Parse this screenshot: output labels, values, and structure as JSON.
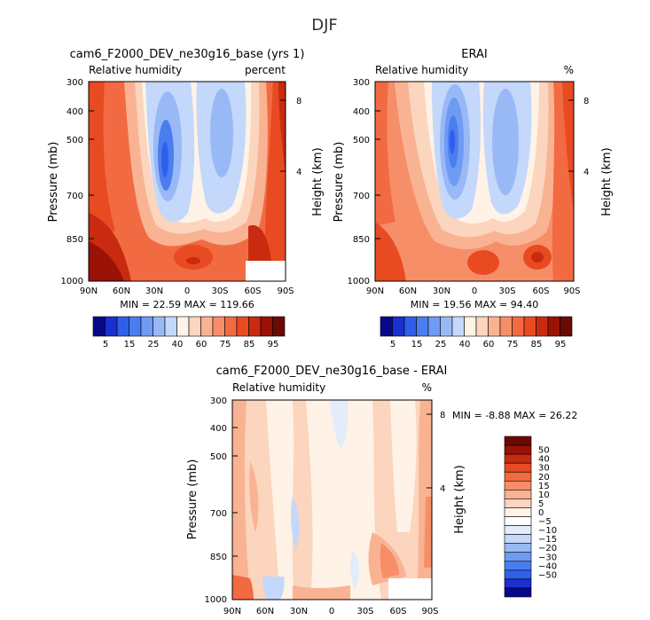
{
  "title": "DJF",
  "palette_main": [
    "#08088a",
    "#1a2fd0",
    "#2f5fea",
    "#4a7ef0",
    "#6f9bf3",
    "#99b9f6",
    "#c3d8fa",
    "#fff2e6",
    "#fbd5bd",
    "#f9b393",
    "#f68e68",
    "#f26a42",
    "#e84a22",
    "#c82b10",
    "#9a1206",
    "#6a0a04"
  ],
  "palette_diff": [
    "#08088a",
    "#1a2fd0",
    "#2f5fea",
    "#4a7ef0",
    "#6f9bf3",
    "#99b9f6",
    "#c3d8fa",
    "#e3ecfb",
    "#ffffff",
    "#fff2e6",
    "#fbd5bd",
    "#f9b393",
    "#f68e68",
    "#f26a42",
    "#e84a22",
    "#c82b10",
    "#9a1206",
    "#6a0a04"
  ],
  "panels": {
    "model": {
      "title": "cam6_F2000_DEV_ne30g16_base (yrs 1)",
      "variable": "Relative humidity",
      "units": "percent",
      "ylabel": "Pressure (mb)",
      "ylabel_right": "Height (km)",
      "min_label": "MIN =",
      "min": "22.59",
      "max_label": "MAX =",
      "max": "119.66"
    },
    "obs": {
      "title": "ERAI",
      "variable": "Relative humidity",
      "units": "%",
      "ylabel": "Pressure (mb)",
      "ylabel_right": "Height (km)",
      "min_label": "MIN =",
      "min": "19.56",
      "max_label": "MAX =",
      "max": "94.40"
    },
    "diff": {
      "title": "cam6_F2000_DEV_ne30g16_base - ERAI",
      "variable": "Relative humidity",
      "units": "%",
      "ylabel": "Pressure (mb)",
      "ylabel_right": "Height (km)",
      "min_label": "MIN =",
      "min": "-8.88",
      "max_label": "MAX =",
      "max": "26.22"
    }
  },
  "chart_data": [
    {
      "type": "heatmap",
      "panel": "model",
      "x_ticks": [
        "90N",
        "60N",
        "30N",
        "0",
        "30S",
        "60S",
        "90S"
      ],
      "y_ticks": [
        "300",
        "400",
        "500",
        "700",
        "850",
        "1000"
      ],
      "y_ticks_right": [
        "8",
        "4"
      ],
      "colorbar_levels": [
        "5",
        "15",
        "25",
        "40",
        "60",
        "75",
        "85",
        "95"
      ],
      "colorbar_position": "bottom"
    },
    {
      "type": "heatmap",
      "panel": "obs",
      "x_ticks": [
        "90N",
        "60N",
        "30N",
        "0",
        "30S",
        "60S",
        "90S"
      ],
      "y_ticks": [
        "300",
        "400",
        "500",
        "700",
        "850",
        "1000"
      ],
      "y_ticks_right": [
        "8",
        "4"
      ],
      "colorbar_levels": [
        "5",
        "15",
        "25",
        "40",
        "60",
        "75",
        "85",
        "95"
      ],
      "colorbar_position": "bottom"
    },
    {
      "type": "heatmap",
      "panel": "diff",
      "x_ticks": [
        "90N",
        "60N",
        "30N",
        "0",
        "30S",
        "60S",
        "90S"
      ],
      "y_ticks": [
        "300",
        "400",
        "500",
        "700",
        "850",
        "1000"
      ],
      "y_ticks_right": [
        "8",
        "4"
      ],
      "colorbar_levels": [
        "50",
        "40",
        "30",
        "20",
        "15",
        "10",
        "5",
        "0",
        "−5",
        "−10",
        "−15",
        "−20",
        "−30",
        "−40",
        "−50"
      ],
      "colorbar_position": "right"
    }
  ]
}
